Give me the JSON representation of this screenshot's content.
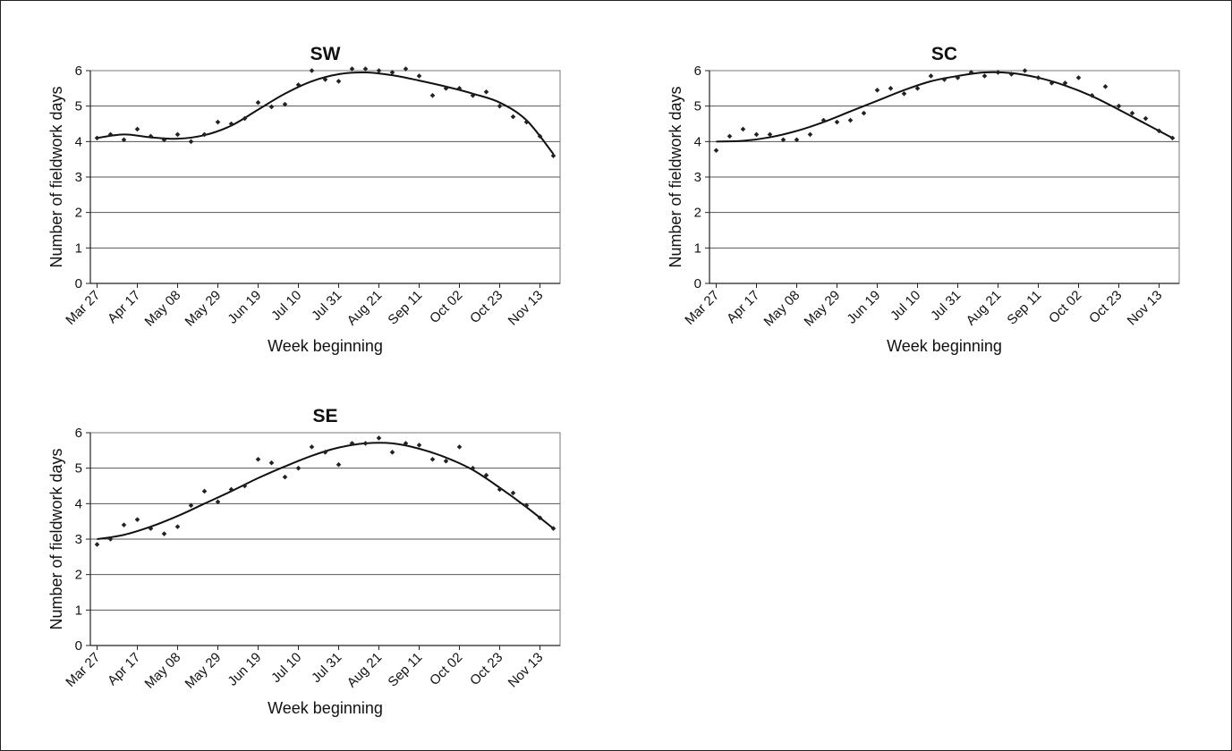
{
  "chart_data": [
    {
      "type": "scatter",
      "title": "SW",
      "xlabel": "Week beginning",
      "ylabel": "Number of fieldwork days",
      "ylim": [
        0,
        6
      ],
      "yticks": [
        "0",
        "1",
        "2",
        "3",
        "4",
        "5",
        "6"
      ],
      "grid": true,
      "legend": "none",
      "x_tick_labels": [
        "Mar 27",
        "Apr 17",
        "May 08",
        "May 29",
        "Jun 19",
        "Jul 10",
        "Jul 31",
        "Aug 21",
        "Sep 11",
        "Oct 02",
        "Oct 23",
        "Nov 13"
      ],
      "x_tick_weeks": [
        0,
        3,
        6,
        9,
        12,
        15,
        18,
        21,
        24,
        27,
        30,
        33
      ],
      "series": [
        {
          "values": [
            4.1,
            4.2,
            4.05,
            4.35,
            4.15,
            4.05,
            4.2,
            4.0,
            4.2,
            4.55,
            4.5,
            4.65,
            5.1,
            4.98,
            5.05,
            5.6,
            6.0,
            5.75,
            5.7,
            6.05,
            6.05,
            6.0,
            5.95,
            6.05,
            5.85,
            5.3,
            5.5,
            5.5,
            5.3,
            5.4,
            5.0,
            4.7,
            4.55,
            4.15,
            3.6
          ]
        }
      ],
      "trend": [
        {
          "week": 0,
          "value": 4.1
        },
        {
          "week": 2,
          "value": 4.2
        },
        {
          "week": 4,
          "value": 4.12
        },
        {
          "week": 6,
          "value": 4.08
        },
        {
          "week": 8,
          "value": 4.18
        },
        {
          "week": 10,
          "value": 4.45
        },
        {
          "week": 12,
          "value": 4.9
        },
        {
          "week": 14,
          "value": 5.35
        },
        {
          "week": 16,
          "value": 5.7
        },
        {
          "week": 18,
          "value": 5.9
        },
        {
          "week": 20,
          "value": 5.95
        },
        {
          "week": 22,
          "value": 5.87
        },
        {
          "week": 24,
          "value": 5.72
        },
        {
          "week": 26,
          "value": 5.55
        },
        {
          "week": 28,
          "value": 5.35
        },
        {
          "week": 30,
          "value": 5.1
        },
        {
          "week": 32,
          "value": 4.6
        },
        {
          "week": 34,
          "value": 3.65
        }
      ]
    },
    {
      "type": "scatter",
      "title": "SC",
      "xlabel": "Week beginning",
      "ylabel": "Number of fieldwork days",
      "ylim": [
        0,
        6
      ],
      "yticks": [
        "0",
        "1",
        "2",
        "3",
        "4",
        "5",
        "6"
      ],
      "grid": true,
      "legend": "none",
      "x_tick_labels": [
        "Mar 27",
        "Apr 17",
        "May 08",
        "May 29",
        "Jun 19",
        "Jul 10",
        "Jul 31",
        "Aug 21",
        "Sep 11",
        "Oct 02",
        "Oct 23",
        "Nov 13"
      ],
      "x_tick_weeks": [
        0,
        3,
        6,
        9,
        12,
        15,
        18,
        21,
        24,
        27,
        30,
        33
      ],
      "series": [
        {
          "values": [
            3.75,
            4.15,
            4.35,
            4.2,
            4.2,
            4.05,
            4.05,
            4.2,
            4.6,
            4.55,
            4.6,
            4.8,
            5.45,
            5.5,
            5.35,
            5.5,
            5.85,
            5.75,
            5.8,
            5.95,
            5.85,
            5.95,
            5.9,
            6.0,
            5.8,
            5.65,
            5.65,
            5.8,
            5.3,
            5.55,
            5.0,
            4.8,
            4.65,
            4.3,
            4.1
          ]
        }
      ],
      "trend": [
        {
          "week": 0,
          "value": 4.0
        },
        {
          "week": 2,
          "value": 4.02
        },
        {
          "week": 4,
          "value": 4.12
        },
        {
          "week": 6,
          "value": 4.3
        },
        {
          "week": 8,
          "value": 4.55
        },
        {
          "week": 10,
          "value": 4.85
        },
        {
          "week": 12,
          "value": 5.15
        },
        {
          "week": 14,
          "value": 5.45
        },
        {
          "week": 16,
          "value": 5.7
        },
        {
          "week": 18,
          "value": 5.85
        },
        {
          "week": 20,
          "value": 5.95
        },
        {
          "week": 22,
          "value": 5.93
        },
        {
          "week": 24,
          "value": 5.8
        },
        {
          "week": 26,
          "value": 5.58
        },
        {
          "week": 28,
          "value": 5.28
        },
        {
          "week": 30,
          "value": 4.9
        },
        {
          "week": 32,
          "value": 4.5
        },
        {
          "week": 34,
          "value": 4.1
        }
      ]
    },
    {
      "type": "scatter",
      "title": "SE",
      "xlabel": "Week beginning",
      "ylabel": "Number of fieldwork days",
      "ylim": [
        0,
        6
      ],
      "yticks": [
        "0",
        "1",
        "2",
        "3",
        "4",
        "5",
        "6"
      ],
      "grid": true,
      "legend": "none",
      "x_tick_labels": [
        "Mar 27",
        "Apr 17",
        "May 08",
        "May 29",
        "Jun 19",
        "Jul 10",
        "Jul 31",
        "Aug 21",
        "Sep 11",
        "Oct 02",
        "Oct 23",
        "Nov 13"
      ],
      "x_tick_weeks": [
        0,
        3,
        6,
        9,
        12,
        15,
        18,
        21,
        24,
        27,
        30,
        33
      ],
      "series": [
        {
          "values": [
            2.85,
            3.0,
            3.4,
            3.55,
            3.3,
            3.15,
            3.35,
            3.95,
            4.35,
            4.05,
            4.4,
            4.5,
            5.25,
            5.15,
            4.75,
            5.0,
            5.6,
            5.45,
            5.1,
            5.7,
            5.7,
            5.85,
            5.45,
            5.7,
            5.65,
            5.25,
            5.2,
            5.6,
            5.0,
            4.8,
            4.4,
            4.3,
            3.95,
            3.6,
            3.3
          ]
        }
      ],
      "trend": [
        {
          "week": 0,
          "value": 3.0
        },
        {
          "week": 2,
          "value": 3.12
        },
        {
          "week": 4,
          "value": 3.35
        },
        {
          "week": 6,
          "value": 3.65
        },
        {
          "week": 8,
          "value": 4.0
        },
        {
          "week": 10,
          "value": 4.35
        },
        {
          "week": 12,
          "value": 4.72
        },
        {
          "week": 14,
          "value": 5.05
        },
        {
          "week": 16,
          "value": 5.35
        },
        {
          "week": 18,
          "value": 5.58
        },
        {
          "week": 20,
          "value": 5.7
        },
        {
          "week": 22,
          "value": 5.7
        },
        {
          "week": 24,
          "value": 5.55
        },
        {
          "week": 26,
          "value": 5.3
        },
        {
          "week": 28,
          "value": 4.95
        },
        {
          "week": 30,
          "value": 4.45
        },
        {
          "week": 32,
          "value": 3.9
        },
        {
          "week": 34,
          "value": 3.3
        }
      ]
    }
  ]
}
